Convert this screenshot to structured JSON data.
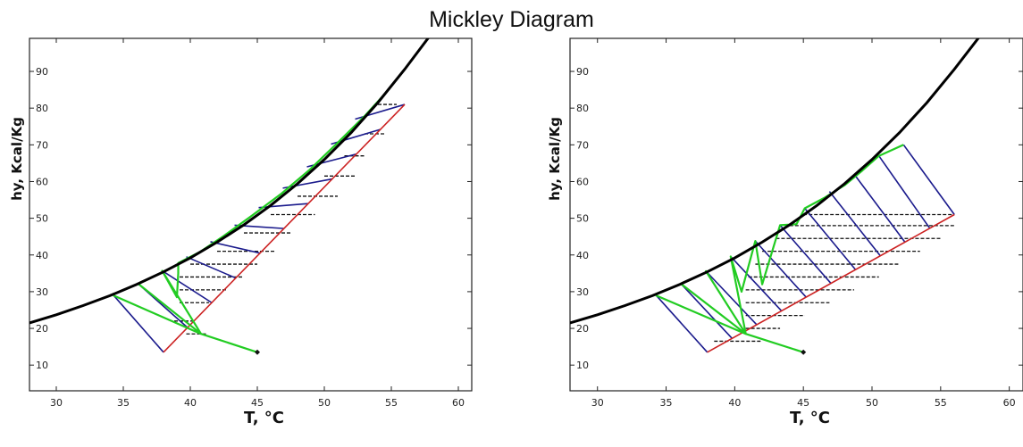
{
  "title": "Mickley Diagram",
  "chart_data": [
    {
      "type": "line",
      "xlabel": "T, °C",
      "ylabel": "hy, Kcal/Kg",
      "xlim": [
        28,
        61
      ],
      "ylim": [
        3,
        99
      ],
      "xticks": [
        30,
        35,
        40,
        45,
        50,
        55,
        60
      ],
      "yticks": [
        10,
        20,
        30,
        40,
        50,
        60,
        70,
        80,
        90
      ],
      "grid": false,
      "colors": {
        "equilibrium": "#000000",
        "operating": "#cc2222",
        "tie": "#1a1a8c",
        "path": "#22cc22",
        "horizontal": "#111111"
      },
      "equilibrium_curve": [
        [
          28,
          21.5
        ],
        [
          30,
          23.7
        ],
        [
          32,
          26.2
        ],
        [
          34,
          28.9
        ],
        [
          36,
          32
        ],
        [
          38,
          35.4
        ],
        [
          40,
          39.2
        ],
        [
          42,
          43.5
        ],
        [
          44,
          48.2
        ],
        [
          46,
          53.5
        ],
        [
          48,
          59.4
        ],
        [
          50,
          66
        ],
        [
          52,
          73.3
        ],
        [
          54,
          81.5
        ],
        [
          56,
          90.6
        ],
        [
          58,
          100.3
        ]
      ],
      "operating_line": [
        [
          38,
          13.5
        ],
        [
          56,
          81
        ]
      ],
      "tie_lines": [
        [
          [
            34.3,
            28.9
          ],
          [
            38,
            13.5
          ]
        ],
        [
          [
            36.1,
            32.2
          ],
          [
            39.8,
            20.2
          ]
        ],
        [
          [
            37.9,
            35.7
          ],
          [
            41.6,
            27
          ]
        ],
        [
          [
            39.7,
            39.5
          ],
          [
            43.4,
            33.7
          ]
        ],
        [
          [
            41.5,
            43.6
          ],
          [
            45.2,
            40.5
          ]
        ],
        [
          [
            43.3,
            48.1
          ],
          [
            47,
            47.2
          ]
        ],
        [
          [
            45.1,
            52.9
          ],
          [
            48.8,
            54
          ]
        ],
        [
          [
            46.9,
            58.2
          ],
          [
            50.6,
            60.7
          ]
        ],
        [
          [
            48.7,
            64
          ],
          [
            52.4,
            67.5
          ]
        ],
        [
          [
            50.5,
            70.2
          ],
          [
            54.2,
            74.2
          ]
        ],
        [
          [
            52.3,
            77
          ],
          [
            56,
            81
          ]
        ]
      ],
      "green_path": [
        [
          45,
          13.5
        ],
        [
          40.8,
          18.5
        ],
        [
          34.3,
          28.9
        ],
        [
          40.8,
          18.5
        ],
        [
          36.1,
          32.2
        ],
        [
          40.8,
          18.5
        ],
        [
          37.9,
          35.7
        ],
        [
          39,
          28.5
        ],
        [
          39.1,
          35
        ],
        [
          39.1,
          37.8
        ],
        [
          40.7,
          40.8
        ],
        [
          42.5,
          45.2
        ],
        [
          44.6,
          50.7
        ],
        [
          46.8,
          56.7
        ],
        [
          48.9,
          63.2
        ],
        [
          51,
          70.6
        ],
        [
          53,
          77.8
        ],
        [
          54.5,
          83.8
        ]
      ],
      "horizontal_segments": [
        [
          [
            39.7,
            18.5
          ],
          [
            41.3,
            18.5
          ]
        ],
        [
          [
            38.8,
            22
          ],
          [
            40.4,
            22
          ]
        ],
        [
          [
            39.2,
            27
          ],
          [
            41.4,
            27
          ]
        ],
        [
          [
            39.2,
            30.5
          ],
          [
            42.8,
            30.5
          ]
        ],
        [
          [
            39.2,
            34
          ],
          [
            43.9,
            34
          ]
        ],
        [
          [
            40,
            37.5
          ],
          [
            45,
            37.5
          ]
        ],
        [
          [
            42,
            41
          ],
          [
            46.3,
            41
          ]
        ],
        [
          [
            44,
            46
          ],
          [
            47.5,
            46
          ]
        ],
        [
          [
            46,
            51
          ],
          [
            49.3,
            51
          ]
        ],
        [
          [
            48,
            56
          ],
          [
            51,
            56
          ]
        ],
        [
          [
            50,
            61.5
          ],
          [
            52.4,
            61.5
          ]
        ],
        [
          [
            51.5,
            67
          ],
          [
            53,
            67
          ]
        ],
        [
          [
            53,
            73
          ],
          [
            54.6,
            73
          ]
        ],
        [
          [
            54,
            81
          ],
          [
            55.4,
            81
          ]
        ]
      ],
      "start_point": [
        45,
        13.5
      ]
    },
    {
      "type": "line",
      "xlabel": "T, °C",
      "ylabel": "hy, Kcal/Kg",
      "xlim": [
        28,
        61
      ],
      "ylim": [
        3,
        99
      ],
      "xticks": [
        30,
        35,
        40,
        45,
        50,
        55,
        60
      ],
      "yticks": [
        10,
        20,
        30,
        40,
        50,
        60,
        70,
        80,
        90
      ],
      "grid": false,
      "colors": {
        "equilibrium": "#000000",
        "operating": "#cc2222",
        "tie": "#1a1a8c",
        "path": "#22cc22",
        "horizontal": "#111111"
      },
      "equilibrium_curve": [
        [
          28,
          21.5
        ],
        [
          30,
          23.7
        ],
        [
          32,
          26.2
        ],
        [
          34,
          28.9
        ],
        [
          36,
          32
        ],
        [
          38,
          35.4
        ],
        [
          40,
          39.2
        ],
        [
          42,
          43.5
        ],
        [
          44,
          48.2
        ],
        [
          46,
          53.5
        ],
        [
          48,
          59.4
        ],
        [
          50,
          66
        ],
        [
          52,
          73.3
        ],
        [
          54,
          81.5
        ],
        [
          56,
          90.6
        ],
        [
          58,
          100.3
        ]
      ],
      "operating_line": [
        [
          38,
          13.5
        ],
        [
          56,
          51
        ]
      ],
      "tie_lines": [
        [
          [
            34.3,
            28.9
          ],
          [
            38,
            13.5
          ]
        ],
        [
          [
            36.1,
            32.1
          ],
          [
            39.8,
            17.3
          ]
        ],
        [
          [
            37.9,
            35.6
          ],
          [
            41.6,
            21
          ]
        ],
        [
          [
            39.7,
            39.6
          ],
          [
            43.4,
            24.8
          ]
        ],
        [
          [
            41.5,
            43.8
          ],
          [
            45.2,
            28.5
          ]
        ],
        [
          [
            43.3,
            48.1
          ],
          [
            47,
            32.3
          ]
        ],
        [
          [
            45.1,
            52.7
          ],
          [
            48.8,
            36
          ]
        ],
        [
          [
            46.9,
            57.3
          ],
          [
            50.6,
            39.8
          ]
        ],
        [
          [
            48.7,
            62
          ],
          [
            52.4,
            43.5
          ]
        ],
        [
          [
            50.5,
            67
          ],
          [
            54.2,
            47.3
          ]
        ],
        [
          [
            52.3,
            70
          ],
          [
            56,
            51
          ]
        ]
      ],
      "green_path": [
        [
          45,
          13.5
        ],
        [
          40.8,
          18.5
        ],
        [
          34.3,
          28.9
        ],
        [
          40.8,
          18.5
        ],
        [
          36.1,
          32.1
        ],
        [
          40.8,
          18.5
        ],
        [
          37.9,
          35.6
        ],
        [
          40.8,
          18.5
        ],
        [
          39.7,
          39.6
        ],
        [
          40.5,
          30
        ],
        [
          41.5,
          43.8
        ],
        [
          42,
          32
        ],
        [
          43.3,
          48.1
        ],
        [
          44.5,
          48.4
        ],
        [
          45.1,
          52.7
        ],
        [
          46.5,
          55.5
        ],
        [
          48,
          59
        ],
        [
          49.3,
          63
        ],
        [
          50.5,
          67
        ],
        [
          52.3,
          70
        ]
      ],
      "horizontal_segments": [
        [
          [
            38.5,
            16.5
          ],
          [
            42,
            16.5
          ]
        ],
        [
          [
            40.8,
            20
          ],
          [
            43.3,
            20
          ]
        ],
        [
          [
            40.8,
            23.5
          ],
          [
            45.1,
            23.5
          ]
        ],
        [
          [
            40.8,
            27
          ],
          [
            46.9,
            27
          ]
        ],
        [
          [
            40.8,
            30.5
          ],
          [
            48.7,
            30.5
          ]
        ],
        [
          [
            41,
            34
          ],
          [
            50.5,
            34
          ]
        ],
        [
          [
            41.5,
            37.5
          ],
          [
            52,
            37.5
          ]
        ],
        [
          [
            42,
            41
          ],
          [
            53.5,
            41
          ]
        ],
        [
          [
            43,
            44.5
          ],
          [
            55,
            44.5
          ]
        ],
        [
          [
            44,
            48
          ],
          [
            56,
            48
          ]
        ],
        [
          [
            45,
            51
          ],
          [
            56,
            51
          ]
        ]
      ],
      "start_point": [
        45,
        13.5
      ]
    }
  ]
}
